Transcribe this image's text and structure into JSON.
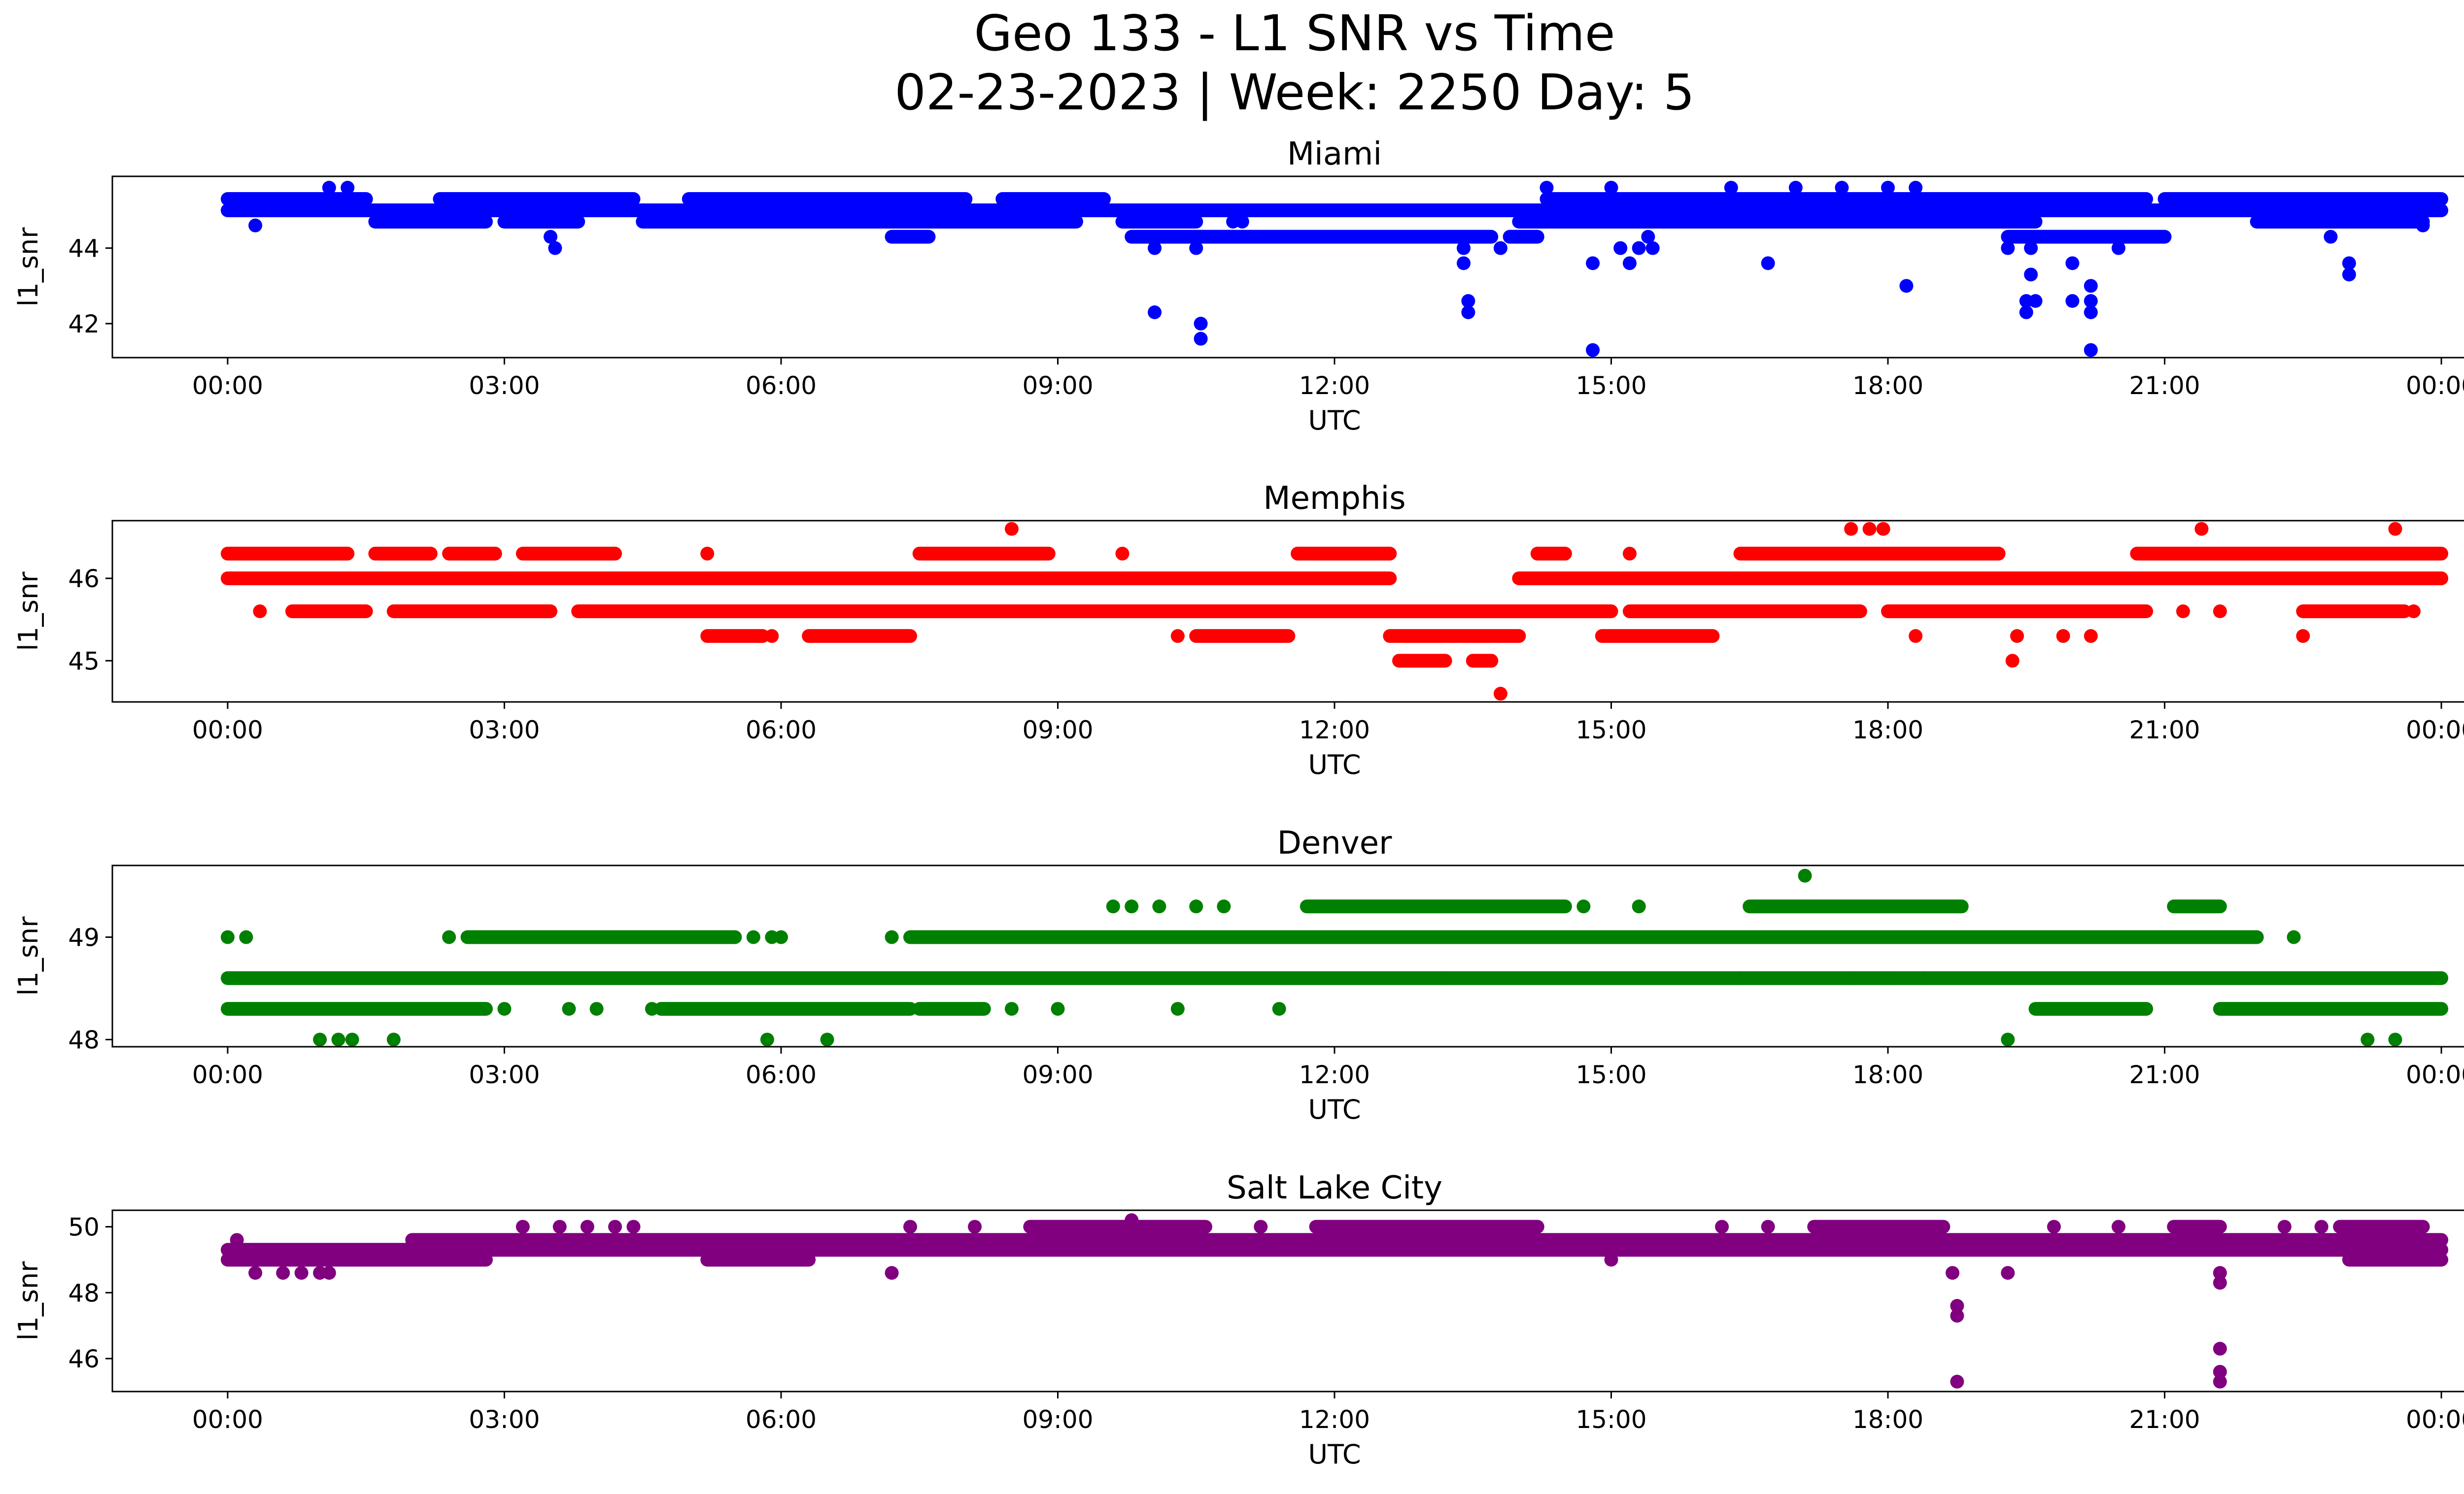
{
  "figure": {
    "title_line1": "Geo 133 - L1 SNR vs Time",
    "title_line2": "02-23-2023 | Week: 2250 Day: 5"
  },
  "chart_data": [
    {
      "type": "scatter",
      "title": "Miami",
      "xlabel": "UTC",
      "ylabel": "l1_snr",
      "color": "#0000ff",
      "xlim": [
        -1.25,
        25.25
      ],
      "ylim": [
        41.1,
        45.9
      ],
      "xticks": [
        0,
        3,
        6,
        9,
        12,
        15,
        18,
        21,
        24
      ],
      "xticklabels": [
        "00:00",
        "03:00",
        "06:00",
        "09:00",
        "12:00",
        "15:00",
        "18:00",
        "21:00",
        "00:00"
      ],
      "yticks": [
        42,
        44
      ],
      "yticklabels": [
        "42",
        "44"
      ],
      "bands": [
        {
          "value": 45.3,
          "segments": [
            [
              0.0,
              1.5
            ],
            [
              2.3,
              4.4
            ],
            [
              5.0,
              8.0
            ],
            [
              8.4,
              9.5
            ],
            [
              14.3,
              20.8
            ],
            [
              21.0,
              24.0
            ]
          ]
        },
        {
          "value": 45.0,
          "segments": [
            [
              0.0,
              24.0
            ]
          ]
        },
        {
          "value": 44.7,
          "segments": [
            [
              1.6,
              2.8
            ],
            [
              3.0,
              3.8
            ],
            [
              4.5,
              9.2
            ],
            [
              9.7,
              10.5
            ],
            [
              14.0,
              19.6
            ],
            [
              22.0,
              23.8
            ]
          ]
        },
        {
          "value": 44.3,
          "segments": [
            [
              7.2,
              7.6
            ],
            [
              9.8,
              13.7
            ],
            [
              13.9,
              14.2
            ],
            [
              19.3,
              21.0
            ]
          ]
        }
      ],
      "points": [
        [
          0.3,
          44.6
        ],
        [
          3.5,
          44.3
        ],
        [
          3.55,
          44.0
        ],
        [
          1.1,
          45.6
        ],
        [
          1.3,
          45.6
        ],
        [
          6.7,
          45.3
        ],
        [
          7.0,
          45.3
        ],
        [
          10.05,
          44.0
        ],
        [
          10.05,
          42.3
        ],
        [
          10.5,
          44.0
        ],
        [
          10.55,
          42.0
        ],
        [
          10.55,
          41.6
        ],
        [
          10.9,
          44.7
        ],
        [
          11.0,
          44.7
        ],
        [
          13.4,
          44.0
        ],
        [
          13.4,
          43.6
        ],
        [
          13.45,
          42.6
        ],
        [
          13.45,
          42.3
        ],
        [
          13.8,
          44.0
        ],
        [
          14.3,
          45.6
        ],
        [
          14.8,
          43.6
        ],
        [
          14.8,
          41.3
        ],
        [
          15.0,
          45.6
        ],
        [
          15.1,
          44.0
        ],
        [
          15.2,
          43.6
        ],
        [
          15.3,
          44.0
        ],
        [
          15.4,
          44.3
        ],
        [
          15.45,
          44.0
        ],
        [
          16.3,
          45.6
        ],
        [
          16.7,
          43.6
        ],
        [
          17.0,
          45.6
        ],
        [
          17.5,
          45.6
        ],
        [
          18.0,
          45.6
        ],
        [
          18.2,
          43.0
        ],
        [
          18.3,
          45.6
        ],
        [
          19.3,
          44.0
        ],
        [
          19.5,
          42.6
        ],
        [
          19.5,
          42.3
        ],
        [
          19.55,
          43.3
        ],
        [
          19.6,
          42.6
        ],
        [
          19.55,
          44.0
        ],
        [
          20.0,
          43.6
        ],
        [
          20.0,
          42.6
        ],
        [
          20.2,
          43.0
        ],
        [
          20.2,
          42.6
        ],
        [
          20.2,
          42.3
        ],
        [
          20.2,
          41.3
        ],
        [
          20.5,
          44.0
        ],
        [
          22.8,
          44.3
        ],
        [
          23.0,
          43.6
        ],
        [
          23.0,
          43.3
        ],
        [
          23.8,
          44.6
        ]
      ]
    },
    {
      "type": "scatter",
      "title": "Memphis",
      "xlabel": "UTC",
      "ylabel": "l1_snr",
      "color": "#ff0000",
      "xlim": [
        -1.25,
        25.25
      ],
      "ylim": [
        44.5,
        46.7
      ],
      "xticks": [
        0,
        3,
        6,
        9,
        12,
        15,
        18,
        21,
        24
      ],
      "xticklabels": [
        "00:00",
        "03:00",
        "06:00",
        "09:00",
        "12:00",
        "15:00",
        "18:00",
        "21:00",
        "00:00"
      ],
      "yticks": [
        45,
        46
      ],
      "yticklabels": [
        "45",
        "46"
      ],
      "bands": [
        {
          "value": 46.3,
          "segments": [
            [
              0.0,
              1.3
            ],
            [
              1.6,
              2.2
            ],
            [
              2.4,
              2.9
            ],
            [
              3.2,
              4.2
            ],
            [
              7.5,
              8.9
            ],
            [
              11.6,
              12.6
            ],
            [
              14.2,
              14.5
            ],
            [
              16.4,
              19.2
            ],
            [
              20.7,
              24.0
            ]
          ]
        },
        {
          "value": 46.0,
          "segments": [
            [
              0.0,
              12.6
            ],
            [
              14.0,
              24.0
            ]
          ]
        },
        {
          "value": 45.6,
          "segments": [
            [
              0.7,
              1.5
            ],
            [
              1.8,
              3.5
            ],
            [
              3.8,
              4.3
            ],
            [
              4.2,
              12.8
            ],
            [
              12.6,
              15.0
            ],
            [
              15.2,
              17.7
            ],
            [
              18.0,
              20.8
            ],
            [
              22.5,
              23.6
            ]
          ]
        },
        {
          "value": 45.3,
          "segments": [
            [
              5.2,
              5.8
            ],
            [
              6.3,
              7.4
            ],
            [
              10.5,
              11.5
            ],
            [
              12.6,
              14.0
            ],
            [
              14.9,
              16.1
            ]
          ]
        },
        {
          "value": 45.0,
          "segments": [
            [
              12.7,
              13.2
            ],
            [
              13.5,
              13.7
            ]
          ]
        }
      ],
      "points": [
        [
          0.35,
          45.6
        ],
        [
          2.2,
          46.3
        ],
        [
          5.2,
          46.3
        ],
        [
          5.9,
          45.3
        ],
        [
          8.5,
          46.6
        ],
        [
          9.7,
          46.3
        ],
        [
          10.3,
          45.3
        ],
        [
          13.8,
          44.6
        ],
        [
          13.7,
          45.0
        ],
        [
          15.2,
          46.3
        ],
        [
          17.6,
          46.6
        ],
        [
          17.8,
          46.6
        ],
        [
          17.95,
          46.6
        ],
        [
          18.3,
          45.3
        ],
        [
          19.4,
          45.3
        ],
        [
          19.35,
          45.0
        ],
        [
          19.9,
          45.3
        ],
        [
          20.2,
          45.3
        ],
        [
          21.2,
          45.6
        ],
        [
          21.4,
          46.6
        ],
        [
          21.6,
          45.6
        ],
        [
          22.5,
          45.3
        ],
        [
          23.5,
          46.6
        ],
        [
          23.7,
          45.6
        ]
      ]
    },
    {
      "type": "scatter",
      "title": "Denver",
      "xlabel": "UTC",
      "ylabel": "l1_snr",
      "color": "#008000",
      "xlim": [
        -1.25,
        25.25
      ],
      "ylim": [
        47.93,
        49.7
      ],
      "xticks": [
        0,
        3,
        6,
        9,
        12,
        15,
        18,
        21,
        24
      ],
      "xticklabels": [
        "00:00",
        "03:00",
        "06:00",
        "09:00",
        "12:00",
        "15:00",
        "18:00",
        "21:00",
        "00:00"
      ],
      "yticks": [
        48,
        49
      ],
      "yticklabels": [
        "48",
        "49"
      ],
      "bands": [
        {
          "value": 49.3,
          "segments": [
            [
              11.7,
              14.5
            ],
            [
              16.5,
              18.8
            ],
            [
              21.1,
              21.6
            ]
          ]
        },
        {
          "value": 49.0,
          "segments": [
            [
              2.6,
              5.5
            ],
            [
              7.4,
              22.0
            ]
          ]
        },
        {
          "value": 48.6,
          "segments": [
            [
              0.0,
              24.0
            ]
          ]
        },
        {
          "value": 48.3,
          "segments": [
            [
              0.0,
              2.8
            ],
            [
              4.7,
              7.4
            ],
            [
              7.5,
              8.2
            ],
            [
              19.6,
              20.8
            ],
            [
              21.6,
              24.0
            ]
          ]
        }
      ],
      "points": [
        [
          0.0,
          49.0
        ],
        [
          0.2,
          49.0
        ],
        [
          1.0,
          48.0
        ],
        [
          1.2,
          48.0
        ],
        [
          1.35,
          48.0
        ],
        [
          1.8,
          48.0
        ],
        [
          2.4,
          49.0
        ],
        [
          3.0,
          48.3
        ],
        [
          3.7,
          48.3
        ],
        [
          4.0,
          48.3
        ],
        [
          4.6,
          48.3
        ],
        [
          5.7,
          49.0
        ],
        [
          5.85,
          48.0
        ],
        [
          5.9,
          49.0
        ],
        [
          6.0,
          49.0
        ],
        [
          6.5,
          48.0
        ],
        [
          7.2,
          49.0
        ],
        [
          8.5,
          48.3
        ],
        [
          9.0,
          48.3
        ],
        [
          9.6,
          49.3
        ],
        [
          9.8,
          49.3
        ],
        [
          10.1,
          49.3
        ],
        [
          10.3,
          48.3
        ],
        [
          10.5,
          49.3
        ],
        [
          10.8,
          49.3
        ],
        [
          11.4,
          48.3
        ],
        [
          13.2,
          48.6
        ],
        [
          14.7,
          49.3
        ],
        [
          15.3,
          49.3
        ],
        [
          16.4,
          48.6
        ],
        [
          17.1,
          49.6
        ],
        [
          17.6,
          48.6
        ],
        [
          18.0,
          48.6
        ],
        [
          18.4,
          48.6
        ],
        [
          19.3,
          48.0
        ],
        [
          20.0,
          49.0
        ],
        [
          20.2,
          49.0
        ],
        [
          21.3,
          49.3
        ],
        [
          22.4,
          49.0
        ],
        [
          23.2,
          48.0
        ],
        [
          23.5,
          48.0
        ]
      ]
    },
    {
      "type": "scatter",
      "title": "Salt Lake City",
      "xlabel": "UTC",
      "ylabel": "l1_snr",
      "color": "#800080",
      "xlim": [
        -1.25,
        25.25
      ],
      "ylim": [
        45.0,
        50.5
      ],
      "xticks": [
        0,
        3,
        6,
        9,
        12,
        15,
        18,
        21,
        24
      ],
      "xticklabels": [
        "00:00",
        "03:00",
        "06:00",
        "09:00",
        "12:00",
        "15:00",
        "18:00",
        "21:00",
        "00:00"
      ],
      "yticks": [
        46,
        48,
        50
      ],
      "yticklabels": [
        "46",
        "48",
        "50"
      ],
      "bands": [
        {
          "value": 49.6,
          "segments": [
            [
              2.0,
              24.0
            ]
          ]
        },
        {
          "value": 49.3,
          "segments": [
            [
              0.0,
              24.0
            ]
          ]
        },
        {
          "value": 49.0,
          "segments": [
            [
              0.0,
              2.8
            ],
            [
              5.2,
              6.3
            ],
            [
              23.0,
              24.0
            ]
          ]
        },
        {
          "value": 50.0,
          "segments": [
            [
              8.7,
              10.6
            ],
            [
              11.8,
              14.2
            ],
            [
              17.2,
              18.6
            ],
            [
              21.1,
              21.6
            ],
            [
              22.9,
              23.8
            ]
          ]
        }
      ],
      "points": [
        [
          0.1,
          49.6
        ],
        [
          0.3,
          48.6
        ],
        [
          0.6,
          48.6
        ],
        [
          0.8,
          48.6
        ],
        [
          1.0,
          48.6
        ],
        [
          1.1,
          48.6
        ],
        [
          3.2,
          50.0
        ],
        [
          3.6,
          50.0
        ],
        [
          3.9,
          50.0
        ],
        [
          4.2,
          50.0
        ],
        [
          4.4,
          50.0
        ],
        [
          7.2,
          48.6
        ],
        [
          7.4,
          50.0
        ],
        [
          8.1,
          50.0
        ],
        [
          9.8,
          50.2
        ],
        [
          11.2,
          50.0
        ],
        [
          15.0,
          49.0
        ],
        [
          16.2,
          50.0
        ],
        [
          16.7,
          50.0
        ],
        [
          18.7,
          48.6
        ],
        [
          18.75,
          47.6
        ],
        [
          18.75,
          47.3
        ],
        [
          18.75,
          45.3
        ],
        [
          19.3,
          48.6
        ],
        [
          19.8,
          50.0
        ],
        [
          20.5,
          50.0
        ],
        [
          21.6,
          48.6
        ],
        [
          21.6,
          48.3
        ],
        [
          21.6,
          46.3
        ],
        [
          21.6,
          45.6
        ],
        [
          21.6,
          45.3
        ],
        [
          22.3,
          50.0
        ],
        [
          22.7,
          50.0
        ]
      ]
    }
  ]
}
